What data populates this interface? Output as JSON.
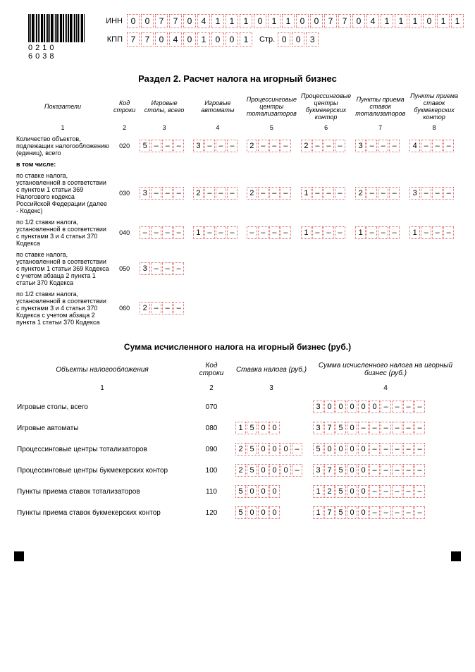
{
  "barcode_number": "0210 6038",
  "header": {
    "inn_label": "ИНН",
    "inn": [
      "0",
      "0",
      "7",
      "7",
      "0",
      "4",
      "1",
      "1",
      "1",
      "0",
      "1",
      "1"
    ],
    "kpp_label": "КПП",
    "kpp": [
      "7",
      "7",
      "0",
      "4",
      "0",
      "1",
      "0",
      "0",
      "1"
    ],
    "page_label": "Стр.",
    "page": [
      "0",
      "0",
      "3"
    ]
  },
  "section_title": "Раздел 2. Расчет налога на игорный бизнес",
  "table1": {
    "headers": [
      "Показатели",
      "Код строки",
      "Игровые столы, всего",
      "Игровые автоматы",
      "Процессинговые центры тотализаторов",
      "Процессинговые центры букмекерских контор",
      "Пункты приема ставок тотализаторов",
      "Пункты приема ставок букмекерских контор"
    ],
    "colnums": [
      "1",
      "2",
      "3",
      "4",
      "5",
      "6",
      "7",
      "8"
    ],
    "rows": [
      {
        "label": "Количество объектов, подлежащих налогообложению (единиц), всего",
        "code": "020",
        "vals": [
          [
            "5",
            "–",
            "–",
            "–"
          ],
          [
            "3",
            "–",
            "–",
            "–"
          ],
          [
            "2",
            "–",
            "–",
            "–"
          ],
          [
            "2",
            "–",
            "–",
            "–"
          ],
          [
            "3",
            "–",
            "–",
            "–"
          ],
          [
            "4",
            "–",
            "–",
            "–"
          ]
        ]
      },
      {
        "label": "в том числе:",
        "bold": true,
        "code": "",
        "vals": null
      },
      {
        "label": "по ставке налога, установленной в соответствии с пунктом 1 статьи 369 Налогового кодекса Российской Федерации (далее - Кодекс)",
        "code": "030",
        "vals": [
          [
            "3",
            "–",
            "–",
            "–"
          ],
          [
            "2",
            "–",
            "–",
            "–"
          ],
          [
            "2",
            "–",
            "–",
            "–"
          ],
          [
            "1",
            "–",
            "–",
            "–"
          ],
          [
            "2",
            "–",
            "–",
            "–"
          ],
          [
            "3",
            "–",
            "–",
            "–"
          ]
        ]
      },
      {
        "label": "по 1/2 ставки налога, установленной в соответствии с пунктами 3 и 4 статьи 370 Кодекса",
        "code": "040",
        "vals": [
          [
            "–",
            "–",
            "–",
            "–"
          ],
          [
            "1",
            "–",
            "–",
            "–"
          ],
          [
            "–",
            "–",
            "–",
            "–"
          ],
          [
            "1",
            "–",
            "–",
            "–"
          ],
          [
            "1",
            "–",
            "–",
            "–"
          ],
          [
            "1",
            "–",
            "–",
            "–"
          ]
        ]
      },
      {
        "label": "по ставке налога, установленной в соответствии с пунктом 1 статьи 369 Кодекса с учетом абзаца 2 пункта 1 статьи 370 Кодекса",
        "code": "050",
        "vals": [
          [
            "3",
            "–",
            "–",
            "–"
          ],
          null,
          null,
          null,
          null,
          null
        ]
      },
      {
        "label": "по 1/2 ставки налога, установленной в соответствии с пунктами 3 и 4 статьи 370 Кодекса с учетом абзаца 2 пункта 1 статьи 370 Кодекса",
        "code": "060",
        "vals": [
          [
            "2",
            "–",
            "–",
            "–"
          ],
          null,
          null,
          null,
          null,
          null
        ]
      }
    ]
  },
  "section2_title": "Сумма исчисленного налога на игорный бизнес (руб.)",
  "table2": {
    "headers": [
      "Объекты налогообложения",
      "Код строки",
      "Ставка налога (руб.)",
      "Сумма исчисленного налога на игорный бизнес (руб.)"
    ],
    "colnums": [
      "1",
      "2",
      "3",
      "4"
    ],
    "rows": [
      {
        "label": "Игровые столы, всего",
        "code": "070",
        "rate": null,
        "sum": [
          "3",
          "0",
          "0",
          "0",
          "0",
          "0",
          "–",
          "–",
          "–",
          "–"
        ]
      },
      {
        "label": "Игровые автоматы",
        "code": "080",
        "rate": [
          "1",
          "5",
          "0",
          "0",
          "",
          ""
        ],
        "sum": [
          "3",
          "7",
          "5",
          "0",
          "–",
          "–",
          "–",
          "–",
          "–",
          "–"
        ]
      },
      {
        "label": "Процессинговые центры тотализаторов",
        "code": "090",
        "rate": [
          "2",
          "5",
          "0",
          "0",
          "0",
          "–"
        ],
        "sum": [
          "5",
          "0",
          "0",
          "0",
          "0",
          "–",
          "–",
          "–",
          "–",
          "–"
        ]
      },
      {
        "label": "Процессинговые центры букмекерских контор",
        "code": "100",
        "rate": [
          "2",
          "5",
          "0",
          "0",
          "0",
          "–"
        ],
        "sum": [
          "3",
          "7",
          "5",
          "0",
          "0",
          "–",
          "–",
          "–",
          "–",
          "–"
        ]
      },
      {
        "label": "Пункты приема ставок тотализаторов",
        "code": "110",
        "rate": [
          "5",
          "0",
          "0",
          "0",
          "",
          ""
        ],
        "sum": [
          "1",
          "2",
          "5",
          "0",
          "0",
          "–",
          "–",
          "–",
          "–",
          "–"
        ]
      },
      {
        "label": "Пункты приема ставок букмекерских контор",
        "code": "120",
        "rate": [
          "5",
          "0",
          "0",
          "0",
          "",
          ""
        ],
        "sum": [
          "1",
          "7",
          "5",
          "0",
          "0",
          "–",
          "–",
          "–",
          "–",
          "–"
        ]
      }
    ]
  }
}
